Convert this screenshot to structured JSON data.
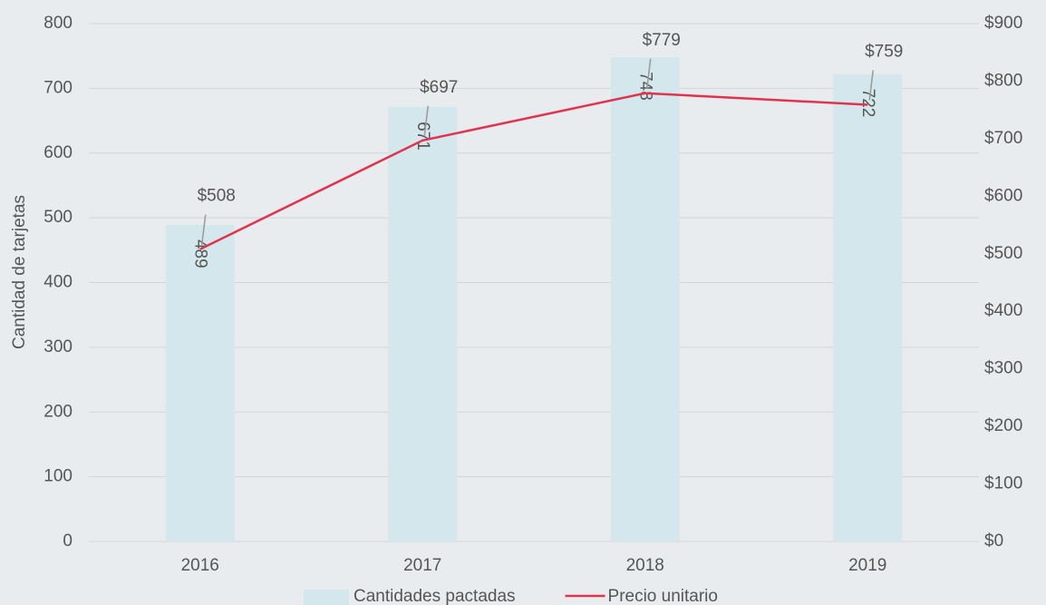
{
  "chart_data": {
    "type": "bar_line",
    "y_label": "Cantidad de tarjetas",
    "categories": [
      "2016",
      "2017",
      "2018",
      "2019"
    ],
    "series": [
      {
        "name": "Cantidades pactadas",
        "color": "#d3e7ec",
        "type": "bar",
        "values": [
          489,
          671,
          748,
          722
        ]
      },
      {
        "name": "Precio unitario",
        "color": "#e0334f",
        "type": "line",
        "axis": "y2",
        "values": [
          508,
          697,
          779,
          759
        ],
        "value_labels": [
          "$508",
          "$697",
          "$779",
          "$759"
        ]
      }
    ],
    "ylim": [
      0,
      800
    ],
    "yticks": [
      0,
      100,
      200,
      300,
      400,
      500,
      600,
      700,
      800
    ],
    "y2lim": [
      0,
      900
    ],
    "y2ticks": [
      {
        "value": 0,
        "label": "$0"
      },
      {
        "value": 100,
        "label": "$100"
      },
      {
        "value": 200,
        "label": "$200"
      },
      {
        "value": 300,
        "label": "$300"
      },
      {
        "value": 400,
        "label": "$400"
      },
      {
        "value": 500,
        "label": "$500"
      },
      {
        "value": 600,
        "label": "$600"
      },
      {
        "value": 700,
        "label": "$700"
      },
      {
        "value": 800,
        "label": "$800"
      },
      {
        "value": 900,
        "label": "$900"
      }
    ],
    "grid": true
  }
}
